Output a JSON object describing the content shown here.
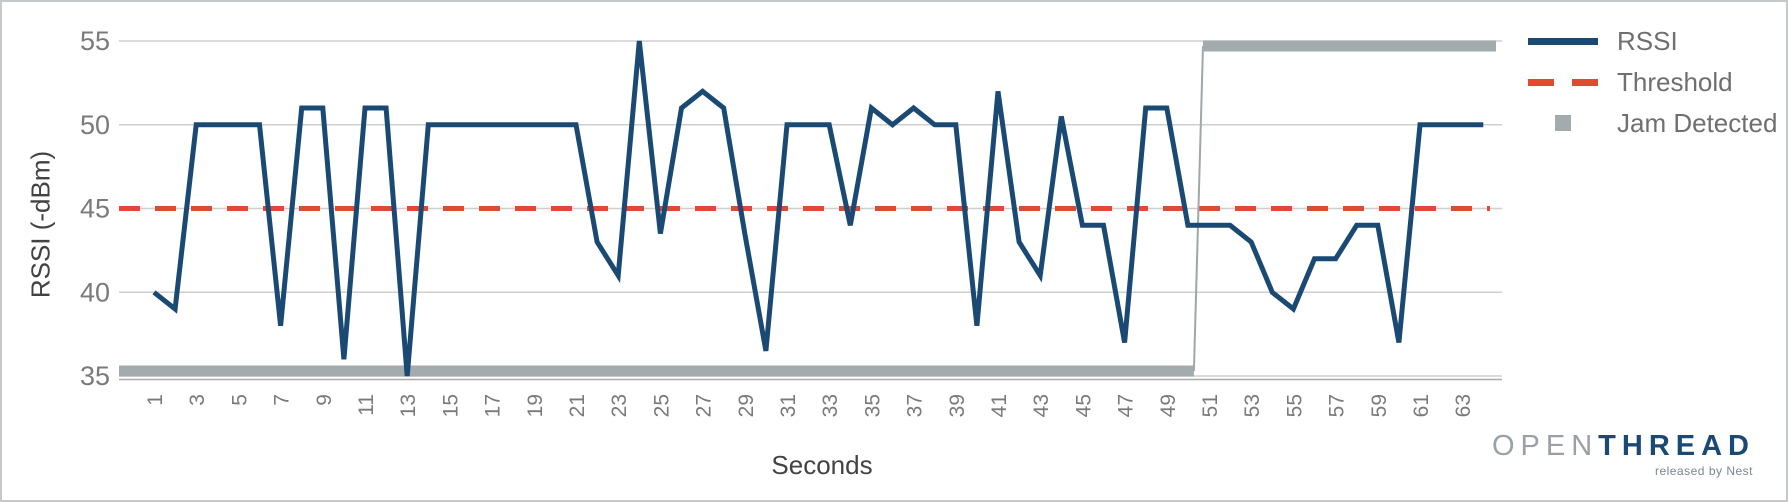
{
  "chart_data": {
    "type": "line",
    "title": "",
    "xlabel": "Seconds",
    "ylabel": "RSSI (-dBm)",
    "ylim": [
      35,
      55
    ],
    "yticks": [
      35,
      40,
      45,
      50,
      55
    ],
    "xticks": [
      1,
      3,
      5,
      7,
      9,
      11,
      13,
      15,
      17,
      19,
      21,
      23,
      25,
      27,
      29,
      31,
      33,
      35,
      37,
      39,
      41,
      43,
      45,
      47,
      49,
      51,
      53,
      55,
      57,
      59,
      61,
      63
    ],
    "x_range": [
      1,
      64
    ],
    "grid": true,
    "legend_position": "right",
    "series": [
      {
        "name": "RSSI",
        "type": "line",
        "color": "#1a4a73",
        "x_start": 1,
        "values": [
          40,
          39,
          50,
          50,
          50,
          50,
          38,
          51,
          51,
          36,
          51,
          51,
          35,
          50,
          50,
          50,
          50,
          50,
          50,
          50,
          50,
          43,
          41,
          55,
          43.5,
          51,
          52,
          51,
          43.5,
          36.5,
          50,
          50,
          50,
          44,
          51,
          50,
          51,
          50,
          50,
          38,
          52,
          43,
          41,
          50.5,
          44,
          44,
          37,
          51,
          51,
          44,
          44,
          44,
          43,
          40,
          39,
          42,
          42,
          44,
          44,
          37,
          50,
          50,
          50,
          50
        ]
      },
      {
        "name": "Threshold",
        "type": "dashed-line",
        "color": "#e04a33",
        "value": 45
      },
      {
        "name": "Jam Detected",
        "type": "step",
        "color": "#a3abae",
        "low_value": 35,
        "high_value": 55,
        "low_until_x": 50,
        "high_from_x": 51,
        "high_until_x": 64
      }
    ]
  },
  "legend": {
    "items": [
      {
        "label": "RSSI",
        "swatch": "line"
      },
      {
        "label": "Threshold",
        "swatch": "dashes"
      },
      {
        "label": "Jam Detected",
        "swatch": "square"
      }
    ]
  },
  "logo": {
    "open": "OPEN",
    "thread": "THREAD",
    "tagline": "released by Nest"
  },
  "colors": {
    "rssi": "#1a4a73",
    "threshold": "#e04a33",
    "jam": "#a3abae",
    "jam_connector": "#9fa7ab",
    "gridline": "#cfcfcf",
    "axis_line": "#ababab",
    "tick_label": "#7a7a7a",
    "axis_title": "#424242"
  }
}
